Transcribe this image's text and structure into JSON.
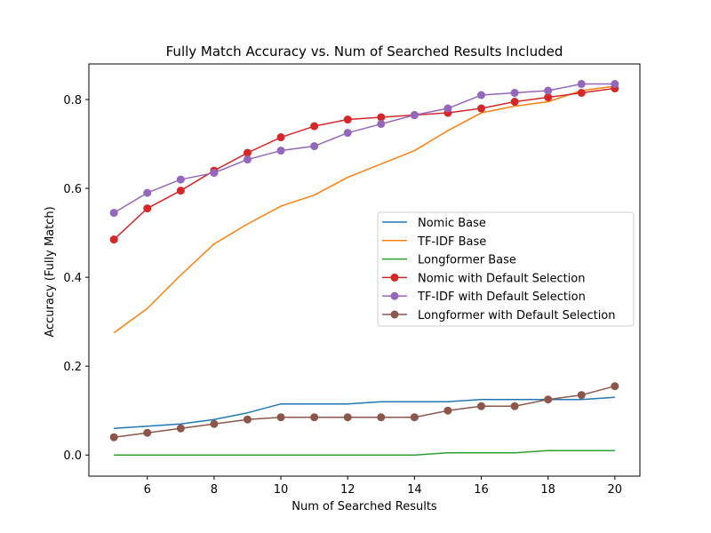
{
  "chart_data": {
    "type": "line",
    "title": "Fully Match Accuracy vs. Num of Searched Results Included",
    "xlabel": "Num of Searched Results",
    "ylabel": "Accuracy (Fully Match)",
    "x": [
      5,
      6,
      7,
      8,
      9,
      10,
      11,
      12,
      13,
      14,
      15,
      16,
      17,
      18,
      19,
      20
    ],
    "xlim": [
      4.25,
      20.75
    ],
    "ylim": [
      -0.0475,
      0.88
    ],
    "xticks": [
      6,
      8,
      10,
      12,
      14,
      16,
      18,
      20
    ],
    "yticks": [
      0.0,
      0.2,
      0.4,
      0.6,
      0.8
    ],
    "xtick_labels": [
      "6",
      "8",
      "10",
      "12",
      "14",
      "16",
      "18",
      "20"
    ],
    "ytick_labels": [
      "0.0",
      "0.2",
      "0.4",
      "0.6",
      "0.8"
    ],
    "grid": false,
    "legend_position": "center-right",
    "series": [
      {
        "name": "Nomic Base",
        "color": "#1f77b4",
        "marker": false,
        "values": [
          0.06,
          0.065,
          0.07,
          0.08,
          0.095,
          0.115,
          0.115,
          0.115,
          0.12,
          0.12,
          0.12,
          0.125,
          0.125,
          0.125,
          0.125,
          0.13
        ]
      },
      {
        "name": "TF-IDF Base",
        "color": "#ff7f0e",
        "marker": false,
        "values": [
          0.275,
          0.33,
          0.405,
          0.475,
          0.52,
          0.56,
          0.585,
          0.625,
          0.655,
          0.685,
          0.73,
          0.77,
          0.785,
          0.795,
          0.82,
          0.83
        ]
      },
      {
        "name": "Longformer Base",
        "color": "#2ca02c",
        "marker": false,
        "values": [
          0.0,
          0.0,
          0.0,
          0.0,
          0.0,
          0.0,
          0.0,
          0.0,
          0.0,
          0.0,
          0.005,
          0.005,
          0.005,
          0.01,
          0.01,
          0.01
        ]
      },
      {
        "name": "Nomic with Default Selection",
        "color": "#d62728",
        "marker": true,
        "values": [
          0.485,
          0.555,
          0.595,
          0.64,
          0.68,
          0.715,
          0.74,
          0.755,
          0.76,
          0.765,
          0.77,
          0.78,
          0.795,
          0.805,
          0.815,
          0.825
        ]
      },
      {
        "name": "TF-IDF with Default Selection",
        "color": "#9467bd",
        "marker": true,
        "values": [
          0.545,
          0.59,
          0.62,
          0.635,
          0.665,
          0.685,
          0.695,
          0.725,
          0.745,
          0.765,
          0.78,
          0.81,
          0.815,
          0.82,
          0.835,
          0.835
        ]
      },
      {
        "name": "Longformer with Default Selection",
        "color": "#8c564b",
        "marker": true,
        "values": [
          0.04,
          0.05,
          0.06,
          0.07,
          0.08,
          0.085,
          0.085,
          0.085,
          0.085,
          0.085,
          0.1,
          0.11,
          0.11,
          0.125,
          0.135,
          0.155
        ]
      }
    ]
  }
}
